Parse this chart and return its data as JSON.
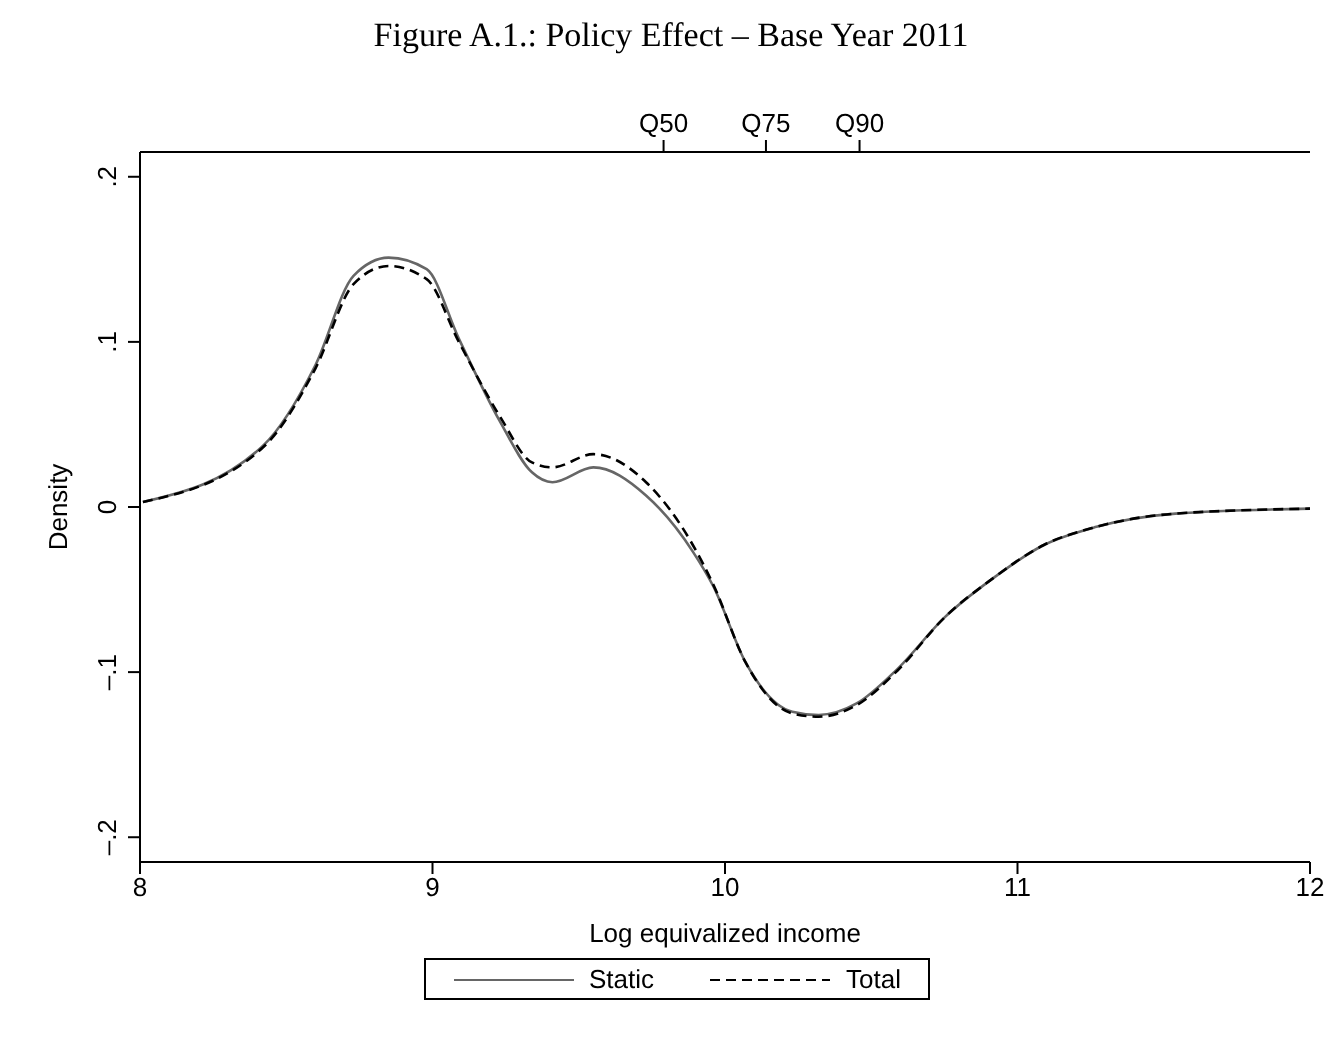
{
  "chart_data": {
    "type": "line",
    "title": "Figure A.1.: Policy Effect – Base Year 2011",
    "xlabel": "Log equivalized income",
    "ylabel": "Density",
    "x": [
      8.01,
      8.42,
      8.6,
      8.73,
      8.85,
      8.98,
      9.09,
      9.23,
      9.34,
      9.41,
      9.55,
      9.73,
      9.89,
      9.96,
      10.07,
      10.23,
      10.32,
      10.45,
      10.59,
      10.75,
      10.91,
      11.09,
      11.27,
      11.54,
      12.0
    ],
    "series": [
      {
        "name": "Static",
        "color": "#666666",
        "line_style": "solid",
        "values": [
          0.003,
          0.037,
          0.086,
          0.14,
          0.151,
          0.144,
          0.102,
          0.052,
          0.021,
          0.015,
          0.024,
          0.007,
          -0.027,
          -0.048,
          -0.094,
          -0.124,
          -0.126,
          -0.119,
          -0.098,
          -0.067,
          -0.044,
          -0.023,
          -0.012,
          -0.004,
          -0.001
        ]
      },
      {
        "name": "Total",
        "color": "#000000",
        "line_style": "dashed",
        "values": [
          0.003,
          0.036,
          0.084,
          0.135,
          0.146,
          0.138,
          0.1,
          0.055,
          0.027,
          0.024,
          0.032,
          0.015,
          -0.023,
          -0.047,
          -0.094,
          -0.125,
          -0.127,
          -0.12,
          -0.099,
          -0.067,
          -0.044,
          -0.023,
          -0.012,
          -0.004,
          -0.001
        ]
      }
    ],
    "xlim": [
      8,
      12
    ],
    "xticks": [
      8,
      9,
      10,
      11,
      12
    ],
    "ref_lines": [
      {
        "axis": "x",
        "value": 9.79,
        "label": "Q50"
      },
      {
        "axis": "x",
        "value": 10.14,
        "label": "Q75"
      },
      {
        "axis": "x",
        "value": 10.46,
        "label": "Q90"
      }
    ],
    "ylim": [
      -0.215,
      0.215
    ],
    "yticks": [
      {
        "value": -0.2,
        "label": "–.2"
      },
      {
        "value": -0.1,
        "label": "–.1"
      },
      0,
      {
        "value": 0.1,
        "label": ".1"
      },
      {
        "value": 0.2,
        "label": ".2"
      }
    ],
    "legend": "bottom",
    "marker": "none"
  }
}
